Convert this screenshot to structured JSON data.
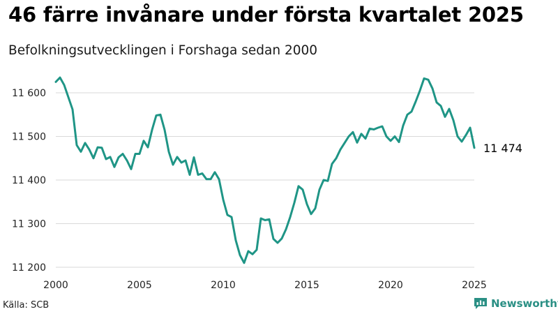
{
  "title": "46 färre invånare under första kvartalet 2025",
  "subtitle": "Befolkningsutvecklingen i Forshaga sedan 2000",
  "source": "Källa: SCB",
  "brand": {
    "name": "Newsworthy",
    "icon": "bar-chart-logo-icon"
  },
  "colors": {
    "line": "#1f9586",
    "grid": "#d9d9d9",
    "brand": "#2a8f84"
  },
  "chart_data": {
    "type": "line",
    "x_unit": "year (quarterly observations)",
    "xlim": [
      2000,
      2025
    ],
    "ylim": [
      11200,
      11600
    ],
    "x_ticks": [
      2000,
      2005,
      2010,
      2015,
      2020,
      2025
    ],
    "y_ticks": [
      11200,
      11300,
      11400,
      11500,
      11600
    ],
    "y_tick_labels": [
      "11 200",
      "11 300",
      "11 400",
      "11 500",
      "11 600"
    ],
    "grid": "horizontal",
    "end_label": "11 474",
    "series": [
      {
        "x": [
          2000,
          2000.25,
          2000.5,
          2000.75,
          2001,
          2001.25,
          2001.5,
          2001.75,
          2002,
          2002.25,
          2002.5,
          2002.75,
          2003,
          2003.25,
          2003.5,
          2003.75,
          2004,
          2004.25,
          2004.5,
          2004.75,
          2005,
          2005.25,
          2005.5,
          2005.75,
          2006,
          2006.25,
          2006.5,
          2006.75,
          2007,
          2007.25,
          2007.5,
          2007.75,
          2008,
          2008.25,
          2008.5,
          2008.75,
          2009,
          2009.25,
          2009.5,
          2009.75,
          2010,
          2010.25,
          2010.5,
          2010.75,
          2011,
          2011.25,
          2011.5,
          2011.75,
          2012,
          2012.25,
          2012.5,
          2012.75,
          2013,
          2013.25,
          2013.5,
          2013.75,
          2014,
          2014.25,
          2014.5,
          2014.75,
          2015,
          2015.25,
          2015.5,
          2015.75,
          2016,
          2016.25,
          2016.5,
          2016.75,
          2017,
          2017.25,
          2017.5,
          2017.75,
          2018,
          2018.25,
          2018.5,
          2018.75,
          2019,
          2019.25,
          2019.5,
          2019.75,
          2020,
          2020.25,
          2020.5,
          2020.75,
          2021,
          2021.25,
          2021.5,
          2021.75,
          2022,
          2022.25,
          2022.5,
          2022.75,
          2023,
          2023.25,
          2023.5,
          2023.75,
          2024,
          2024.25,
          2024.5,
          2024.75,
          2025
        ],
        "values": [
          11625,
          11635,
          11618,
          11590,
          11562,
          11480,
          11465,
          11485,
          11470,
          11450,
          11475,
          11474,
          11448,
          11453,
          11430,
          11452,
          11460,
          11445,
          11425,
          11460,
          11460,
          11490,
          11475,
          11515,
          11548,
          11550,
          11515,
          11465,
          11435,
          11453,
          11440,
          11445,
          11412,
          11452,
          11412,
          11415,
          11402,
          11402,
          11418,
          11402,
          11355,
          11320,
          11315,
          11262,
          11228,
          11210,
          11237,
          11230,
          11240,
          11312,
          11308,
          11310,
          11265,
          11256,
          11266,
          11287,
          11315,
          11348,
          11386,
          11378,
          11345,
          11322,
          11335,
          11378,
          11400,
          11398,
          11437,
          11450,
          11470,
          11485,
          11500,
          11510,
          11486,
          11506,
          11495,
          11518,
          11516,
          11520,
          11523,
          11500,
          11490,
          11500,
          11487,
          11525,
          11550,
          11557,
          11580,
          11605,
          11633,
          11630,
          11610,
          11578,
          11570,
          11545,
          11563,
          11537,
          11500,
          11488,
          11503,
          11520,
          11474
        ]
      }
    ]
  }
}
